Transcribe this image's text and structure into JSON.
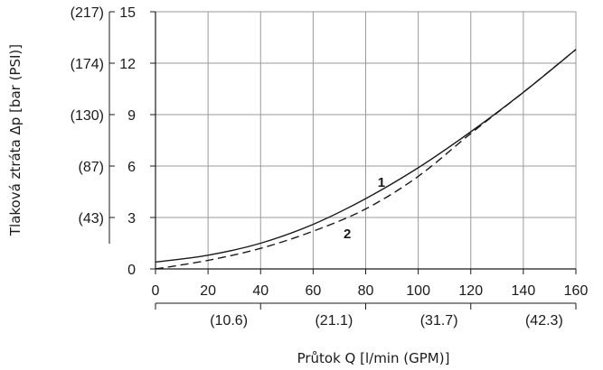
{
  "chart_data": {
    "type": "line",
    "xlabel": "Průtok Q [l/min (GPM)]",
    "ylabel": "Tlaková ztráta Δp [bar (PSI)]",
    "xlim": [
      0,
      160
    ],
    "ylim": [
      0,
      15
    ],
    "x_ticks": [
      "0",
      "20",
      "40",
      "60",
      "80",
      "100",
      "120",
      "140",
      "160"
    ],
    "x_secondary_ticks": [
      "(10.6)",
      "(21.1)",
      "(31.7)",
      "(42.3)"
    ],
    "y_ticks": [
      "0",
      "3",
      "6",
      "9",
      "12",
      "15"
    ],
    "y_secondary_ticks": [
      "(43)",
      "(87)",
      "(130)",
      "(174)",
      "(217)"
    ],
    "grid": true,
    "series": [
      {
        "name": "1",
        "style": "solid",
        "x": [
          0,
          20,
          40,
          60,
          80,
          100,
          120,
          140,
          160
        ],
        "y": [
          0.4,
          0.8,
          1.5,
          2.6,
          4.1,
          5.9,
          8.0,
          10.3,
          12.8
        ]
      },
      {
        "name": "2",
        "style": "dashed",
        "x": [
          0,
          20,
          40,
          60,
          80,
          100,
          120,
          140,
          160
        ],
        "y": [
          0.0,
          0.5,
          1.2,
          2.2,
          3.5,
          5.4,
          7.9,
          10.3,
          12.8
        ]
      }
    ],
    "colors": {
      "line": "#1a1a1a",
      "grid": "#9a9a9a",
      "axis": "#1a1a1a"
    }
  }
}
